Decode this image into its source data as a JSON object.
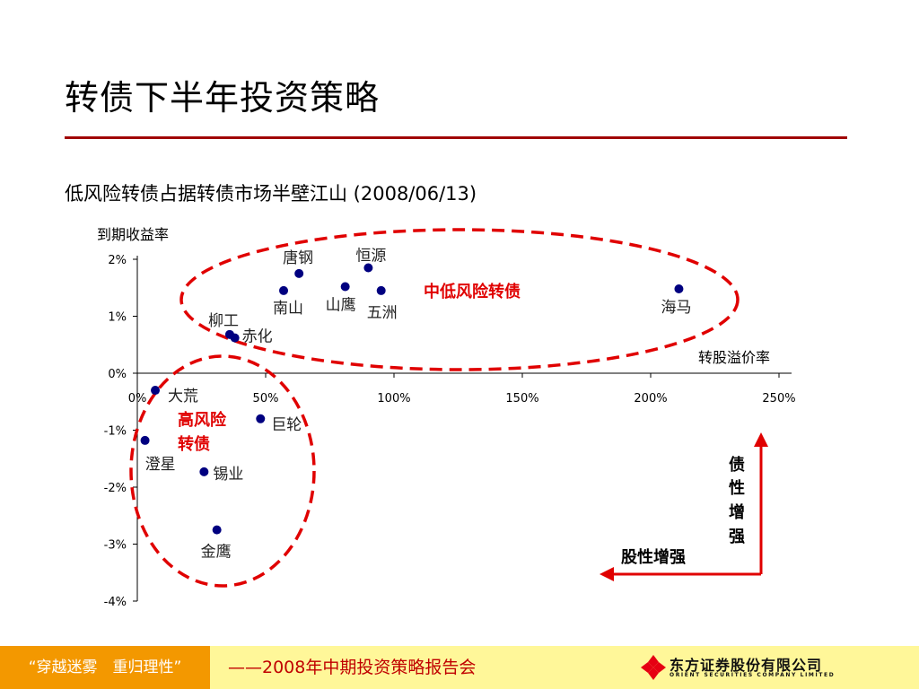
{
  "slide": {
    "title": "转债下半年投资策略",
    "subtitle": "低风险转债占据转债市场半壁江山 (2008/06/13)"
  },
  "chart_data": {
    "type": "scatter",
    "xlabel": "转股溢价率",
    "ylabel": "到期收益率",
    "x_ticks": [
      "0%",
      "50%",
      "100%",
      "150%",
      "200%",
      "250%"
    ],
    "y_ticks": [
      "2%",
      "1%",
      "0%",
      "-1%",
      "-2%",
      "-3%",
      "-4%"
    ],
    "xlim": [
      0,
      250
    ],
    "ylim": [
      -4,
      2
    ],
    "point_color": "#000080",
    "points": [
      {
        "label": "唐钢",
        "x": 63,
        "y": 1.75
      },
      {
        "label": "恒源",
        "x": 90,
        "y": 1.85
      },
      {
        "label": "南山",
        "x": 57,
        "y": 1.45
      },
      {
        "label": "山鹰",
        "x": 81,
        "y": 1.52
      },
      {
        "label": "五洲",
        "x": 95,
        "y": 1.45
      },
      {
        "label": "海马",
        "x": 211,
        "y": 1.48
      },
      {
        "label": "柳工",
        "x": 36,
        "y": 0.68
      },
      {
        "label": "赤化",
        "x": 38,
        "y": 0.62
      },
      {
        "label": "大荒",
        "x": 7,
        "y": -0.3
      },
      {
        "label": "巨轮",
        "x": 48,
        "y": -0.8
      },
      {
        "label": "澄星",
        "x": 3,
        "y": -1.18
      },
      {
        "label": "锡业",
        "x": 26,
        "y": -1.73
      },
      {
        "label": "金鹰",
        "x": 31,
        "y": -2.75
      }
    ],
    "annotations": {
      "low_risk": "中低风险转债",
      "high_risk_line1": "高风险",
      "high_risk_line2": "转债",
      "bond_arrow": [
        "债",
        "性",
        "增",
        "强"
      ],
      "equity_arrow": "股性增强"
    },
    "annotation_color": "#e00000"
  },
  "footer": {
    "left_text": "“穿越迷雾　重归理性”",
    "slogan": "——2008年中期投资策略报告会",
    "company_cn": "东方证券股份有限公司",
    "company_en": "ORIENT SECURITIES COMPANY LIMITED"
  }
}
